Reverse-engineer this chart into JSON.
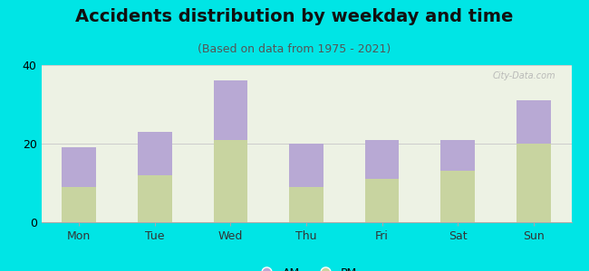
{
  "title": "Accidents distribution by weekday and time",
  "subtitle": "(Based on data from 1975 - 2021)",
  "categories": [
    "Mon",
    "Tue",
    "Wed",
    "Thu",
    "Fri",
    "Sat",
    "Sun"
  ],
  "pm_values": [
    9,
    12,
    21,
    9,
    11,
    13,
    20
  ],
  "am_values": [
    10,
    11,
    15,
    11,
    10,
    8,
    11
  ],
  "am_color": "#b8a9d4",
  "pm_color": "#c8d4a0",
  "background_color": "#00e5e5",
  "plot_bg_color": "#edf2e4",
  "ylim": [
    0,
    40
  ],
  "yticks": [
    0,
    20,
    40
  ],
  "bar_width": 0.45,
  "title_fontsize": 14,
  "subtitle_fontsize": 9,
  "watermark": "City-Data.com"
}
